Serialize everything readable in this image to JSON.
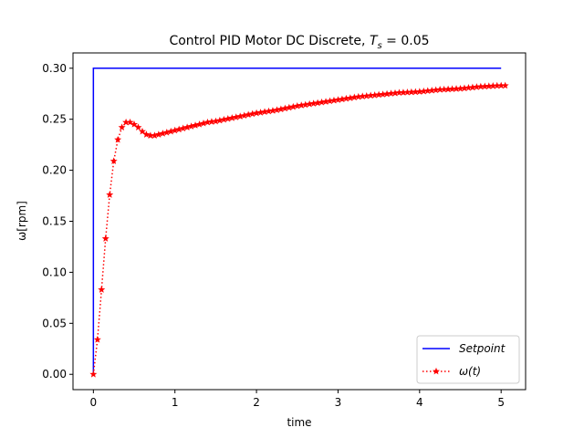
{
  "chart_data": {
    "type": "line",
    "title": "Control PID Motor DC Discrete, ",
    "title_math": {
      "var": "T",
      "sub": "s",
      "rest": " = 0.05"
    },
    "xlabel": "time",
    "ylabel": "ω[rpm]",
    "xlim": [
      -0.25,
      5.3
    ],
    "ylim": [
      -0.015,
      0.315
    ],
    "x_ticks": [
      0,
      1,
      2,
      3,
      4,
      5
    ],
    "x_tick_labels": [
      "0",
      "1",
      "2",
      "3",
      "4",
      "5"
    ],
    "y_ticks": [
      0.0,
      0.05,
      0.1,
      0.15,
      0.2,
      0.25,
      0.3
    ],
    "y_tick_labels": [
      "0.00",
      "0.05",
      "0.10",
      "0.15",
      "0.20",
      "0.25",
      "0.30"
    ],
    "grid": false,
    "legend_position": "lower-right",
    "sample_time": 0.05,
    "series": [
      {
        "name": "Setpoint",
        "color": "#0000ff",
        "style": "solid",
        "marker": "none",
        "x": [
          0,
          0,
          5
        ],
        "y": [
          0,
          0.3,
          0.3
        ]
      },
      {
        "name": "ω(t)",
        "color": "#ff0000",
        "style": "dotted",
        "marker": "star",
        "t": [
          0,
          0.05,
          0.1,
          0.15,
          0.2,
          0.25,
          0.3,
          0.35,
          0.4,
          0.45,
          0.5,
          0.55,
          0.6,
          0.65,
          0.7,
          0.75,
          0.8,
          0.85,
          0.9,
          0.95,
          1.0,
          1.1,
          1.2,
          1.3,
          1.4,
          1.5,
          1.75,
          2.0,
          2.25,
          2.5,
          2.75,
          3.0,
          3.25,
          3.5,
          3.75,
          4.0,
          4.25,
          4.5,
          4.75,
          5.0,
          5.05
        ],
        "y": [
          0.0,
          0.034,
          0.083,
          0.133,
          0.176,
          0.209,
          0.23,
          0.242,
          0.247,
          0.247,
          0.245,
          0.242,
          0.238,
          0.235,
          0.234,
          0.234,
          0.235,
          0.236,
          0.237,
          0.238,
          0.239,
          0.241,
          0.243,
          0.245,
          0.247,
          0.248,
          0.252,
          0.256,
          0.259,
          0.263,
          0.266,
          0.269,
          0.272,
          0.274,
          0.276,
          0.277,
          0.279,
          0.28,
          0.282,
          0.283,
          0.283
        ]
      }
    ]
  }
}
